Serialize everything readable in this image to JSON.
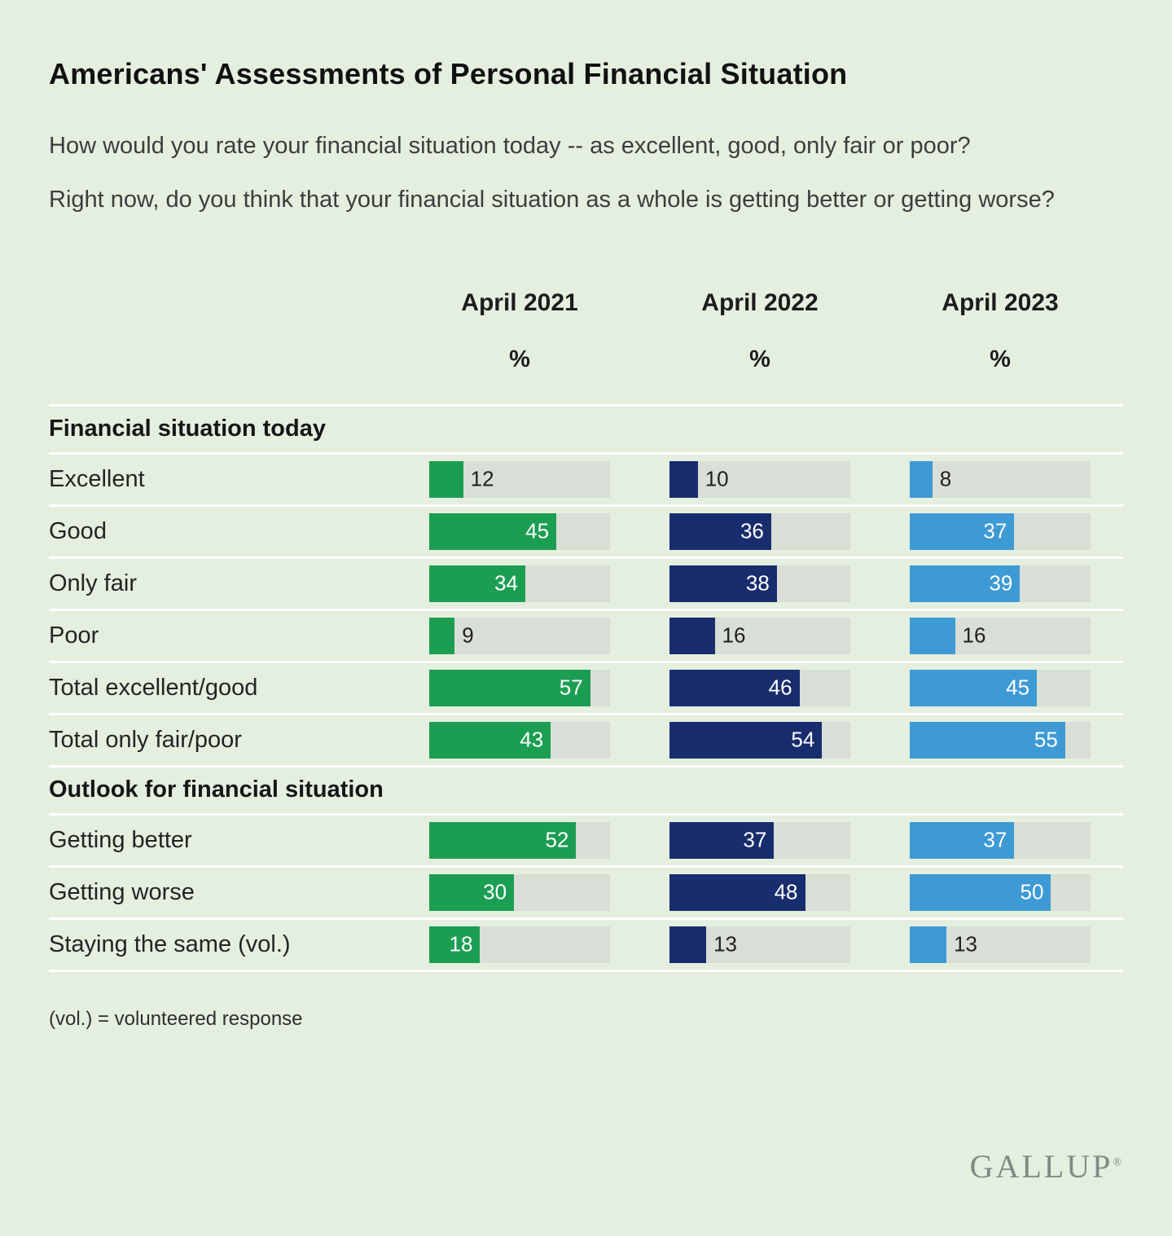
{
  "page": {
    "title": "Americans' Assessments of Personal Financial Situation",
    "question_1": "How would you rate your financial situation today -- as excellent, good, only fair or poor?",
    "question_2": "Right now, do you think that your financial situation as a whole is getting better or getting worse?",
    "footnote": "(vol.) = volunteered response",
    "logo": "GALLUP"
  },
  "chart_data": {
    "type": "bar",
    "title": "Americans' Assessments of Personal Financial Situation",
    "orientation": "horizontal",
    "axis_max": 64,
    "track_color": "#d9ded6",
    "inside_label_min": 18,
    "columns": [
      {
        "label": "April 2021",
        "unit": "%",
        "color": "#1c9e52"
      },
      {
        "label": "April 2022",
        "unit": "%",
        "color": "#182d6d"
      },
      {
        "label": "April 2023",
        "unit": "%",
        "color": "#3d9ad4"
      }
    ],
    "sections": [
      {
        "header": "Financial situation today",
        "rows": [
          {
            "label": "Excellent",
            "values": [
              12,
              10,
              8
            ]
          },
          {
            "label": "Good",
            "values": [
              45,
              36,
              37
            ]
          },
          {
            "label": "Only fair",
            "values": [
              34,
              38,
              39
            ]
          },
          {
            "label": "Poor",
            "values": [
              9,
              16,
              16
            ]
          },
          {
            "label": "Total excellent/good",
            "values": [
              57,
              46,
              45
            ]
          },
          {
            "label": "Total only fair/poor",
            "values": [
              43,
              54,
              55
            ]
          }
        ]
      },
      {
        "header": "Outlook for financial situation",
        "rows": [
          {
            "label": "Getting better",
            "values": [
              52,
              37,
              37
            ]
          },
          {
            "label": "Getting worse",
            "values": [
              30,
              48,
              50
            ]
          },
          {
            "label": "Staying the same (vol.)",
            "values": [
              18,
              13,
              13
            ]
          }
        ]
      }
    ]
  }
}
